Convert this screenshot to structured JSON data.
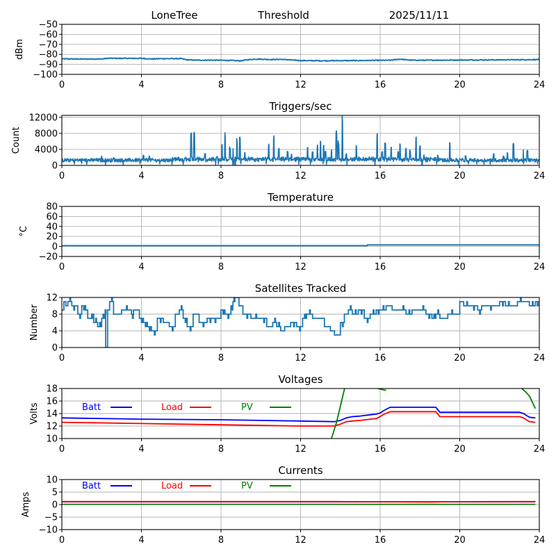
{
  "header": {
    "station": "LoneTree",
    "mode": "Threshold",
    "date": "2025/11/11"
  },
  "colors": {
    "default_series": "#1f77b4",
    "batt": "#0000ff",
    "load": "#ff0000",
    "pv": "#008000",
    "grid": "#b0b0b0"
  },
  "chart_data": [
    {
      "id": "signal",
      "type": "line",
      "title": "",
      "xlabel": "",
      "ylabel": "dBm",
      "xlim": [
        0,
        24
      ],
      "ylim": [
        -100,
        -50
      ],
      "xticks": [
        0,
        4,
        8,
        12,
        16,
        20,
        24
      ],
      "yticks": [
        -100,
        -90,
        -80,
        -70,
        -60,
        -50
      ],
      "ytick_labels": [
        "−100",
        "−90",
        "−80",
        "−70",
        "−60",
        "−50"
      ],
      "grid": true,
      "series": [
        {
          "name": "signal",
          "color": "#1f77b4",
          "x": [
            0,
            1,
            2,
            2.3,
            3,
            4,
            4.5,
            5,
            6,
            6.3,
            6.8,
            7.5,
            8,
            8.5,
            9,
            9.3,
            9.7,
            10,
            10.5,
            11,
            11.5,
            12,
            13,
            14,
            15,
            16,
            16.5,
            17,
            17.5,
            18,
            19,
            20,
            21,
            22,
            23,
            24
          ],
          "y": [
            -84.5,
            -84.7,
            -84.6,
            -84.0,
            -84.0,
            -84.0,
            -84.6,
            -84.3,
            -84.3,
            -85.5,
            -85.8,
            -85.8,
            -85.9,
            -86.1,
            -86.5,
            -85.5,
            -84.8,
            -84.8,
            -85.2,
            -85.0,
            -85.6,
            -86.2,
            -86.4,
            -86.3,
            -86.2,
            -86.0,
            -85.9,
            -84.8,
            -85.8,
            -85.9,
            -85.8,
            -85.7,
            -85.6,
            -85.5,
            -85.4,
            -85.2
          ]
        }
      ]
    },
    {
      "id": "triggers",
      "type": "line",
      "title": "Triggers/sec",
      "xlabel": "",
      "ylabel": "Count",
      "xlim": [
        0,
        24
      ],
      "ylim": [
        0,
        12500
      ],
      "xticks": [
        0,
        4,
        8,
        12,
        16,
        20,
        24
      ],
      "yticks": [
        0,
        4000,
        8000,
        12000
      ],
      "ytick_labels": [
        "0",
        "4000",
        "8000",
        "12000"
      ],
      "grid": true,
      "baseline": 1300,
      "spikes": [
        [
          2.0,
          2400
        ],
        [
          2.6,
          2000
        ],
        [
          4.1,
          2700
        ],
        [
          4.4,
          2600
        ],
        [
          6.5,
          8700
        ],
        [
          6.65,
          8900
        ],
        [
          7.2,
          3000
        ],
        [
          7.8,
          2300
        ],
        [
          8.05,
          5500
        ],
        [
          8.2,
          8200
        ],
        [
          8.45,
          4800
        ],
        [
          8.6,
          4200
        ],
        [
          8.8,
          6800
        ],
        [
          8.95,
          7200
        ],
        [
          9.2,
          3500
        ],
        [
          10.4,
          5400
        ],
        [
          10.65,
          7800
        ],
        [
          10.9,
          4300
        ],
        [
          11.35,
          3600
        ],
        [
          11.55,
          3000
        ],
        [
          12.35,
          4800
        ],
        [
          12.6,
          3500
        ],
        [
          12.85,
          5200
        ],
        [
          13.0,
          6200
        ],
        [
          13.15,
          5000
        ],
        [
          13.25,
          3500
        ],
        [
          13.55,
          4200
        ],
        [
          13.8,
          8900
        ],
        [
          13.9,
          6200
        ],
        [
          14.1,
          12500
        ],
        [
          14.3,
          3200
        ],
        [
          14.8,
          5000
        ],
        [
          15.85,
          8000
        ],
        [
          16.1,
          3800
        ],
        [
          16.25,
          6000
        ],
        [
          16.55,
          4600
        ],
        [
          16.9,
          3500
        ],
        [
          17.0,
          5800
        ],
        [
          17.3,
          4400
        ],
        [
          17.5,
          4000
        ],
        [
          17.8,
          7800
        ],
        [
          18.0,
          5000
        ],
        [
          18.2,
          2600
        ],
        [
          18.9,
          2800
        ],
        [
          19.5,
          5800
        ],
        [
          20.3,
          2500
        ],
        [
          21.7,
          3000
        ],
        [
          22.2,
          2600
        ],
        [
          22.4,
          3500
        ],
        [
          22.7,
          5800
        ],
        [
          23.2,
          4200
        ],
        [
          23.4,
          4000
        ]
      ],
      "series": [
        {
          "name": "triggers",
          "color": "#1f77b4"
        }
      ]
    },
    {
      "id": "temperature",
      "type": "line",
      "title": "Temperature",
      "xlabel": "",
      "ylabel": "°C",
      "xlim": [
        0,
        24
      ],
      "ylim": [
        -20,
        80
      ],
      "xticks": [
        0,
        4,
        8,
        12,
        16,
        20,
        24
      ],
      "yticks": [
        -20,
        0,
        20,
        40,
        60,
        80
      ],
      "ytick_labels": [
        "−20",
        "0",
        "20",
        "40",
        "60",
        "80"
      ],
      "grid": true,
      "series": [
        {
          "name": "temperature",
          "color": "#1f77b4",
          "x": [
            0,
            15.35,
            15.36,
            24
          ],
          "y": [
            1.5,
            1.5,
            3.0,
            3.0
          ]
        }
      ]
    },
    {
      "id": "satellites",
      "type": "line",
      "title": "Satellites Tracked",
      "xlabel": "",
      "ylabel": "Number",
      "xlim": [
        0,
        24
      ],
      "ylim": [
        0,
        12
      ],
      "xticks": [
        0,
        4,
        8,
        12,
        16,
        20,
        24
      ],
      "yticks": [
        0,
        4,
        8,
        12
      ],
      "ytick_labels": [
        "0",
        "4",
        "8",
        "12"
      ],
      "grid": true,
      "series": [
        {
          "name": "satellites",
          "color": "#1f77b4",
          "x": [
            0,
            0.1,
            0.2,
            0.3,
            0.5,
            0.7,
            0.8,
            1.0,
            1.2,
            1.3,
            1.5,
            1.6,
            1.8,
            2.0,
            2.15,
            2.2,
            2.3,
            2.4,
            2.6,
            3.0,
            3.5,
            3.6,
            3.9,
            4.1,
            4.3,
            4.5,
            4.8,
            5.1,
            5.4,
            5.7,
            5.9,
            6.1,
            6.3,
            6.6,
            6.9,
            7.3,
            7.6,
            7.8,
            8.0,
            8.2,
            8.5,
            8.6,
            8.7,
            8.9,
            9.1,
            9.5,
            10.0,
            10.3,
            10.6,
            10.8,
            11.0,
            11.2,
            11.5,
            11.8,
            12.1,
            12.3,
            12.6,
            13.0,
            13.2,
            13.5,
            13.7,
            14.0,
            14.2,
            14.4,
            14.6,
            14.9,
            15.2,
            15.5,
            15.8,
            16.0,
            16.3,
            16.6,
            17.0,
            17.3,
            17.6,
            18.0,
            18.3,
            18.6,
            18.8,
            19.0,
            19.4,
            19.8,
            20.0,
            20.2,
            20.5,
            20.9,
            21.1,
            21.4,
            21.7,
            22.0,
            22.3,
            22.6,
            22.9,
            23.2,
            23.5,
            23.8,
            24
          ],
          "y": [
            9,
            11,
            10,
            11,
            10,
            10,
            8,
            10,
            9,
            7,
            8,
            6,
            5,
            7,
            8,
            0,
            9,
            11,
            8,
            9,
            8,
            9,
            7,
            6,
            5,
            4,
            7,
            6,
            5,
            8,
            9,
            7,
            5,
            8,
            6,
            7,
            7,
            7,
            9,
            8,
            10,
            11,
            12,
            10,
            8,
            7,
            7,
            5,
            6,
            5,
            4,
            5,
            6,
            5,
            7,
            8,
            7,
            7,
            5,
            4,
            3,
            6,
            8,
            9,
            8,
            9,
            7,
            8,
            9,
            9,
            10,
            9,
            9,
            8,
            9,
            9,
            8,
            7,
            8,
            7,
            8,
            8,
            11,
            10,
            10,
            9,
            10,
            10,
            10,
            11,
            10,
            10,
            11,
            11,
            10,
            11,
            11
          ]
        }
      ]
    },
    {
      "id": "voltages",
      "type": "line",
      "title": "Voltages",
      "xlabel": "",
      "ylabel": "Volts",
      "xlim": [
        0,
        24
      ],
      "ylim": [
        10,
        18
      ],
      "xticks": [
        0,
        4,
        8,
        12,
        16,
        20,
        24
      ],
      "yticks": [
        10,
        12,
        14,
        16,
        18
      ],
      "ytick_labels": [
        "10",
        "12",
        "14",
        "16",
        "18"
      ],
      "grid": true,
      "legend": {
        "placement": "top-left-inline",
        "entries": [
          "Batt",
          "Load",
          "PV"
        ]
      },
      "series": [
        {
          "name": "Batt",
          "color": "#0000ff",
          "x": [
            0,
            4,
            8,
            12,
            13.7,
            14.0,
            14.3,
            14.6,
            15.0,
            15.5,
            15.8,
            16.0,
            16.2,
            16.5,
            18.6,
            18.8,
            19.0,
            23.0,
            23.2,
            23.5,
            23.8
          ],
          "y": [
            13.3,
            13.1,
            13.0,
            12.8,
            12.7,
            12.9,
            13.3,
            13.5,
            13.6,
            13.8,
            13.9,
            14.1,
            14.5,
            15.0,
            15.0,
            15.0,
            14.2,
            14.2,
            14.0,
            13.4,
            13.3
          ]
        },
        {
          "name": "Load",
          "color": "#ff0000",
          "x": [
            0,
            4,
            8,
            12,
            13.7,
            14.0,
            14.3,
            14.6,
            15.0,
            15.5,
            15.8,
            16.0,
            16.2,
            16.5,
            18.6,
            18.8,
            19.0,
            23.0,
            23.2,
            23.5,
            23.8
          ],
          "y": [
            12.6,
            12.4,
            12.2,
            12.0,
            12.0,
            12.3,
            12.7,
            12.8,
            12.9,
            13.1,
            13.2,
            13.5,
            13.9,
            14.3,
            14.3,
            14.3,
            13.5,
            13.5,
            13.3,
            12.7,
            12.6
          ]
        },
        {
          "name": "PV",
          "color": "#008000",
          "segments": [
            {
              "x": [
                13.55,
                13.8,
                14.1,
                14.25
              ],
              "y": [
                10,
                12.5,
                16.5,
                18.5
              ]
            },
            {
              "x": [
                15.6,
                16.0,
                16.3
              ],
              "y": [
                18.3,
                17.9,
                17.7
              ]
            },
            {
              "x": [
                23.0,
                23.3,
                23.5,
                23.8
              ],
              "y": [
                18.3,
                17.5,
                16.8,
                14.8
              ]
            }
          ]
        }
      ]
    },
    {
      "id": "currents",
      "type": "line",
      "title": "Currents",
      "xlabel": "",
      "ylabel": "Amps",
      "xlim": [
        0,
        24
      ],
      "ylim": [
        -10,
        10
      ],
      "xticks": [
        0,
        4,
        8,
        12,
        16,
        20,
        24
      ],
      "yticks": [
        -10,
        -5,
        0,
        5,
        10
      ],
      "ytick_labels": [
        "−10",
        "−5",
        "0",
        "5",
        "10"
      ],
      "grid": true,
      "legend": {
        "placement": "top-left-inline",
        "entries": [
          "Batt",
          "Load",
          "PV"
        ]
      },
      "series": [
        {
          "name": "Batt",
          "color": "#0000ff",
          "x": [
            0,
            23.8
          ],
          "y": [
            1.1,
            1.1
          ]
        },
        {
          "name": "Load",
          "color": "#ff0000",
          "x": [
            0,
            13.5,
            16,
            18.5,
            19.5,
            23.8
          ],
          "y": [
            1.2,
            1.2,
            1.1,
            1.0,
            1.15,
            1.2
          ]
        },
        {
          "name": "PV",
          "color": "#008000",
          "x": [
            0,
            23.8
          ],
          "y": [
            0.1,
            0.1
          ]
        }
      ]
    }
  ]
}
